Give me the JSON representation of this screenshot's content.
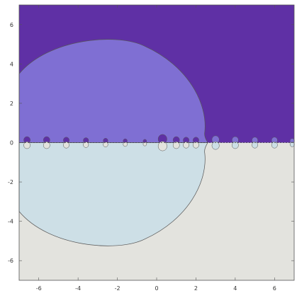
{
  "chart_data": {
    "type": "heatmap",
    "title": "",
    "xlabel": "",
    "ylabel": "",
    "xlim": [
      -7,
      7
    ],
    "ylim": [
      -7,
      7
    ],
    "x_ticks": [
      -6,
      -4,
      -2,
      0,
      2,
      4,
      6
    ],
    "y_ticks": [
      -6,
      -4,
      -2,
      0,
      2,
      4,
      6
    ],
    "grid": false,
    "legend": "none",
    "colors": {
      "upper_outer": "#5f30a5",
      "upper_inner": "#7f6fd3",
      "lower_inner": "#cddfe6",
      "lower_outer": "#e3e3de",
      "outline": "#555555"
    },
    "regions": [
      {
        "name": "upper-outer",
        "y_range": [
          0,
          7
        ],
        "color": "upper_outer"
      },
      {
        "name": "upper-inner",
        "y_range": [
          0,
          5.2
        ],
        "x_range": [
          -7,
          2.6
        ],
        "color": "upper_inner"
      },
      {
        "name": "lower-inner",
        "y_range": [
          -5.2,
          0
        ],
        "x_range": [
          -7,
          2.6
        ],
        "color": "lower_inner"
      },
      {
        "name": "lower-outer",
        "y_range": [
          -7,
          0
        ],
        "color": "lower_outer"
      }
    ],
    "boundary_blobs": [
      {
        "x": -6.6,
        "r": 0.22
      },
      {
        "x": -5.6,
        "r": 0.22
      },
      {
        "x": -4.6,
        "r": 0.2
      },
      {
        "x": -3.6,
        "r": 0.18
      },
      {
        "x": -2.6,
        "r": 0.16
      },
      {
        "x": -1.6,
        "r": 0.14
      },
      {
        "x": -0.6,
        "r": 0.12
      },
      {
        "x": 0.3,
        "r": 0.3
      },
      {
        "x": 1.0,
        "r": 0.22
      },
      {
        "x": 1.5,
        "r": 0.2
      },
      {
        "x": 2.0,
        "r": 0.2
      },
      {
        "x": 3.0,
        "r": 0.25
      },
      {
        "x": 4.0,
        "r": 0.22
      },
      {
        "x": 5.0,
        "r": 0.2
      },
      {
        "x": 6.0,
        "r": 0.2
      },
      {
        "x": 6.9,
        "r": 0.15
      }
    ]
  }
}
